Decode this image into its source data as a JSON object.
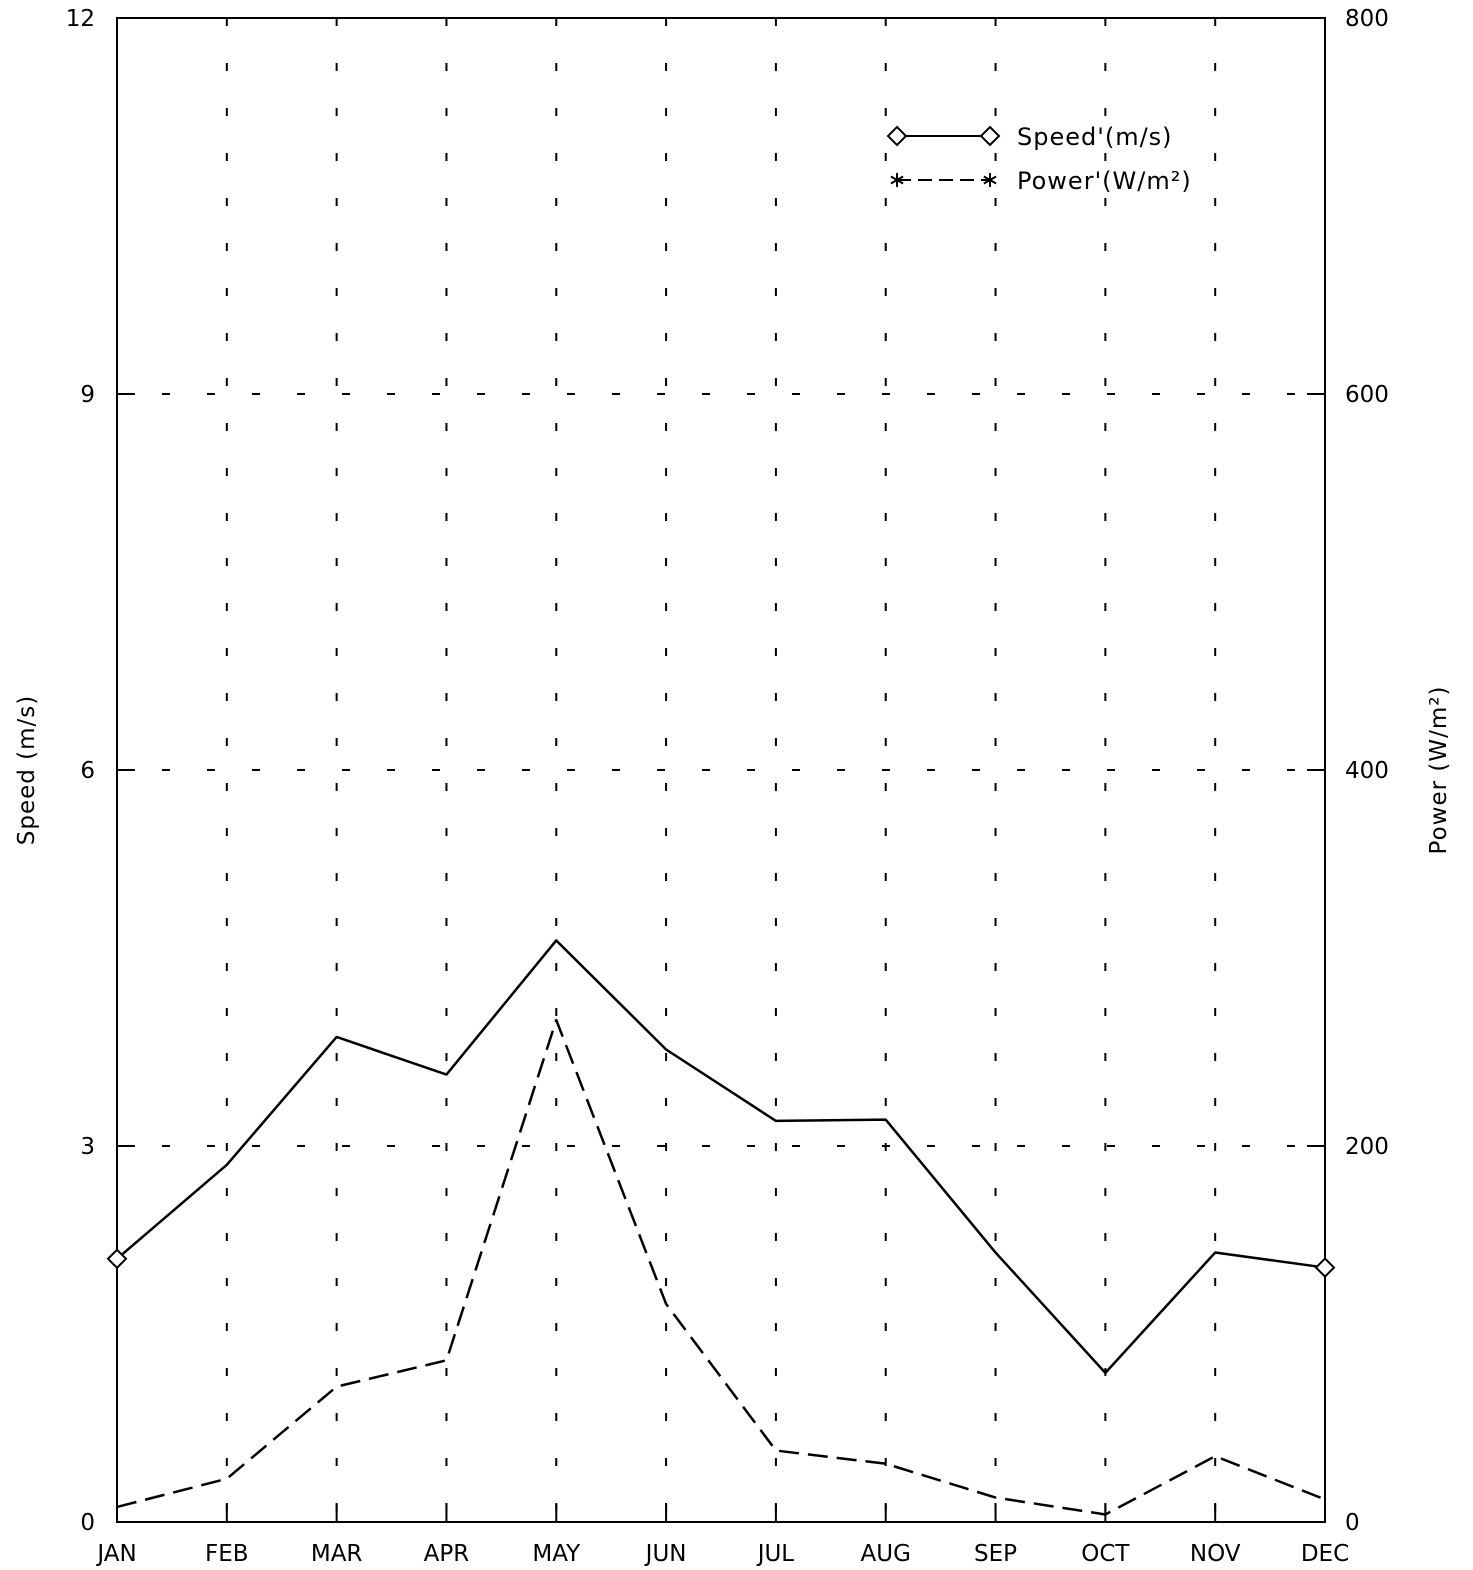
{
  "chart_data": {
    "type": "line",
    "categories": [
      "JAN",
      "FEB",
      "MAR",
      "APR",
      "MAY",
      "JUN",
      "JUL",
      "AUG",
      "SEP",
      "OCT",
      "NOV",
      "DEC"
    ],
    "ylabel_left": "Speed (m/s)",
    "ylabel_right": "Power (W/m²)",
    "y_left_lim": [
      0,
      12
    ],
    "y_right_lim": [
      0,
      800
    ],
    "y_left_ticks": [
      "0",
      "3",
      "6",
      "9",
      "12"
    ],
    "y_right_ticks": [
      "0",
      "200",
      "400",
      "600",
      "800"
    ],
    "grid": true,
    "legend_position": "top-right",
    "series": [
      {
        "name": "Speed'(m/s)",
        "axis": "left",
        "line_style": "solid",
        "marker": "diamond",
        "color": "#000000",
        "values": [
          2.1,
          2.85,
          3.87,
          3.57,
          4.64,
          3.77,
          3.2,
          3.21,
          2.15,
          1.19,
          2.15,
          2.03
        ]
      },
      {
        "name": "Power'(W/m²)",
        "axis": "right",
        "line_style": "dashed",
        "marker": "asterisk",
        "color": "#000000",
        "values": [
          8,
          23,
          72,
          86,
          267,
          116,
          38,
          31,
          13,
          4,
          35,
          12
        ]
      }
    ]
  }
}
